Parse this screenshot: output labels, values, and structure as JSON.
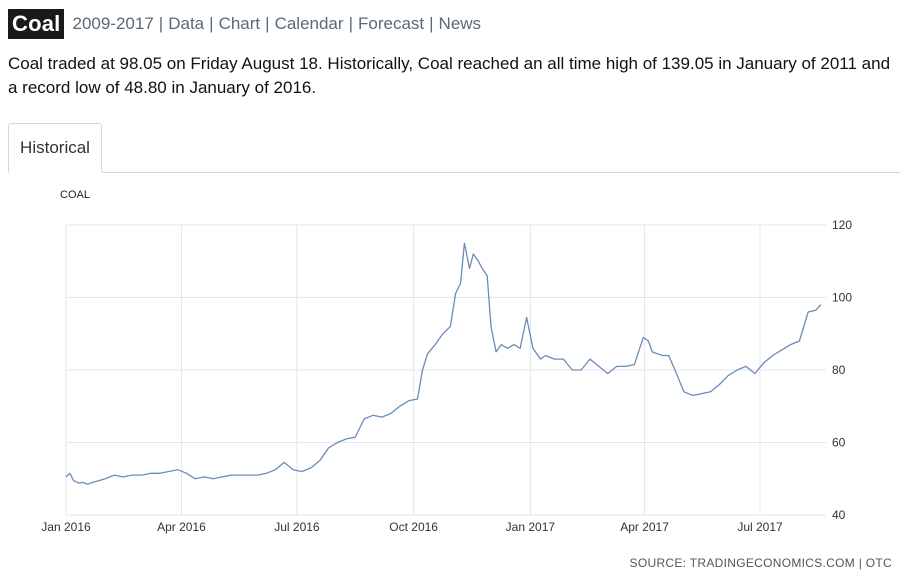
{
  "header": {
    "title": "Coal",
    "nav": [
      "2009-2017",
      "Data",
      "Chart",
      "Calendar",
      "Forecast",
      "News"
    ]
  },
  "summary": "Coal traded at 98.05 on Friday August 18. Historically, Coal reached an all time high of 139.05 in January of 2011 and a record low of 48.80 in January of 2016.",
  "tabs": [
    {
      "label": "Historical",
      "active": true
    }
  ],
  "source": "SOURCE: TRADINGECONOMICS.COM | OTC",
  "chart_data": {
    "type": "line",
    "series_label": "COAL",
    "xlabel": "",
    "ylabel": "",
    "x_ticks": [
      "Jan 2016",
      "Apr 2016",
      "Jul 2016",
      "Oct 2016",
      "Jan 2017",
      "Apr 2017",
      "Jul 2017"
    ],
    "y_ticks": [
      40,
      60,
      80,
      100,
      120
    ],
    "ylim": [
      40,
      120
    ],
    "xlim": [
      "2016-01-01",
      "2017-08-22"
    ],
    "grid": true,
    "line_color": "#6a8cba",
    "series": [
      {
        "x": [
          "2016-01-01",
          "2016-01-04",
          "2016-01-07",
          "2016-01-11",
          "2016-01-14",
          "2016-01-18",
          "2016-01-22",
          "2016-01-27",
          "2016-02-01",
          "2016-02-08",
          "2016-02-15",
          "2016-02-22",
          "2016-03-01",
          "2016-03-08",
          "2016-03-15",
          "2016-03-22",
          "2016-03-29",
          "2016-04-05",
          "2016-04-12",
          "2016-04-19",
          "2016-04-26",
          "2016-05-03",
          "2016-05-10",
          "2016-05-17",
          "2016-05-24",
          "2016-05-31",
          "2016-06-07",
          "2016-06-14",
          "2016-06-21",
          "2016-06-28",
          "2016-07-05",
          "2016-07-12",
          "2016-07-19",
          "2016-07-26",
          "2016-08-02",
          "2016-08-09",
          "2016-08-16",
          "2016-08-23",
          "2016-08-30",
          "2016-09-06",
          "2016-09-13",
          "2016-09-20",
          "2016-09-27",
          "2016-10-04",
          "2016-10-08",
          "2016-10-12",
          "2016-10-18",
          "2016-10-24",
          "2016-10-30",
          "2016-11-03",
          "2016-11-07",
          "2016-11-10",
          "2016-11-14",
          "2016-11-17",
          "2016-11-21",
          "2016-11-24",
          "2016-11-28",
          "2016-12-01",
          "2016-12-05",
          "2016-12-09",
          "2016-12-14",
          "2016-12-19",
          "2016-12-24",
          "2016-12-29",
          "2017-01-03",
          "2017-01-09",
          "2017-01-13",
          "2017-01-20",
          "2017-01-27",
          "2017-02-03",
          "2017-02-10",
          "2017-02-17",
          "2017-02-24",
          "2017-03-03",
          "2017-03-10",
          "2017-03-17",
          "2017-03-24",
          "2017-03-31",
          "2017-04-04",
          "2017-04-07",
          "2017-04-11",
          "2017-04-15",
          "2017-04-20",
          "2017-04-25",
          "2017-05-02",
          "2017-05-09",
          "2017-05-16",
          "2017-05-23",
          "2017-05-30",
          "2017-06-06",
          "2017-06-13",
          "2017-06-20",
          "2017-06-27",
          "2017-07-04",
          "2017-07-11",
          "2017-07-18",
          "2017-07-25",
          "2017-08-01",
          "2017-08-08",
          "2017-08-14",
          "2017-08-18"
        ],
        "y": [
          50.5,
          51.5,
          49.5,
          48.8,
          49.0,
          48.5,
          49.0,
          49.5,
          50.0,
          51.0,
          50.5,
          51.0,
          51.0,
          51.5,
          51.5,
          52.0,
          52.5,
          51.5,
          50.0,
          50.5,
          50.0,
          50.5,
          51.0,
          51.0,
          51.0,
          51.0,
          51.5,
          52.5,
          54.5,
          52.5,
          52.0,
          53.0,
          55.0,
          58.5,
          60.0,
          61.0,
          61.5,
          66.5,
          67.5,
          67.0,
          68.0,
          70.0,
          71.5,
          72.0,
          80.0,
          84.5,
          87.0,
          90.0,
          92.0,
          101.0,
          104.0,
          115.0,
          108.0,
          112.0,
          110.0,
          108.0,
          106.0,
          92.0,
          85.0,
          87.0,
          86.0,
          87.0,
          86.0,
          94.5,
          86.0,
          83.0,
          84.0,
          83.0,
          83.0,
          80.0,
          80.0,
          83.0,
          81.0,
          79.0,
          81.0,
          81.0,
          81.5,
          89.0,
          88.0,
          85.0,
          84.5,
          84.0,
          84.0,
          80.0,
          74.0,
          73.0,
          73.5,
          74.0,
          76.0,
          78.5,
          80.0,
          81.0,
          79.0,
          82.0,
          84.0,
          85.5,
          87.0,
          88.0,
          96.0,
          96.5,
          98.05
        ]
      }
    ]
  }
}
